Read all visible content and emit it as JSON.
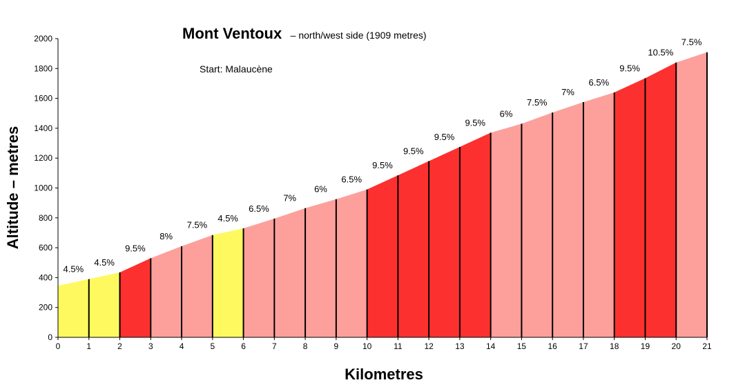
{
  "chart_data": {
    "type": "area",
    "title": "Mont Ventoux",
    "subtitle": "– north/west side (1909 metres)",
    "annotation": "Start: Malaucène",
    "xlabel": "Kilometres",
    "ylabel": "Altitude – metres",
    "xlim": [
      0,
      21
    ],
    "ylim": [
      0,
      2000
    ],
    "x_ticks": [
      0,
      1,
      2,
      3,
      4,
      5,
      6,
      7,
      8,
      9,
      10,
      11,
      12,
      13,
      14,
      15,
      16,
      17,
      18,
      19,
      20,
      21
    ],
    "y_ticks": [
      0,
      200,
      400,
      600,
      800,
      1000,
      1200,
      1400,
      1600,
      1800,
      2000
    ],
    "grid": false,
    "km": [
      0,
      1,
      2,
      3,
      4,
      5,
      6,
      7,
      8,
      9,
      10,
      11,
      12,
      13,
      14,
      15,
      16,
      17,
      18,
      19,
      20,
      21
    ],
    "altitude": [
      345,
      390,
      435,
      530,
      610,
      685,
      730,
      795,
      865,
      925,
      990,
      1085,
      1180,
      1275,
      1370,
      1430,
      1505,
      1575,
      1640,
      1735,
      1840,
      1909
    ],
    "segments": [
      {
        "label": "4.5%",
        "category": "easy"
      },
      {
        "label": "4.5%",
        "category": "easy"
      },
      {
        "label": "9.5%",
        "category": "steep"
      },
      {
        "label": "8%",
        "category": "moderate"
      },
      {
        "label": "7.5%",
        "category": "moderate"
      },
      {
        "label": "4.5%",
        "category": "easy"
      },
      {
        "label": "6.5%",
        "category": "moderate"
      },
      {
        "label": "7%",
        "category": "moderate"
      },
      {
        "label": "6%",
        "category": "moderate"
      },
      {
        "label": "6.5%",
        "category": "moderate"
      },
      {
        "label": "9.5%",
        "category": "steep"
      },
      {
        "label": "9.5%",
        "category": "steep"
      },
      {
        "label": "9.5%",
        "category": "steep"
      },
      {
        "label": "9.5%",
        "category": "steep"
      },
      {
        "label": "6%",
        "category": "moderate"
      },
      {
        "label": "7.5%",
        "category": "moderate"
      },
      {
        "label": "7%",
        "category": "moderate"
      },
      {
        "label": "6.5%",
        "category": "moderate"
      },
      {
        "label": "9.5%",
        "category": "steep"
      },
      {
        "label": "10.5%",
        "category": "steep"
      },
      {
        "label": "7.5%",
        "category": "moderate"
      }
    ],
    "colors": {
      "easy": "#fdf95f",
      "moderate": "#fda09c",
      "steep": "#fd3030",
      "divider": "#000000",
      "axis": "#000000"
    }
  }
}
